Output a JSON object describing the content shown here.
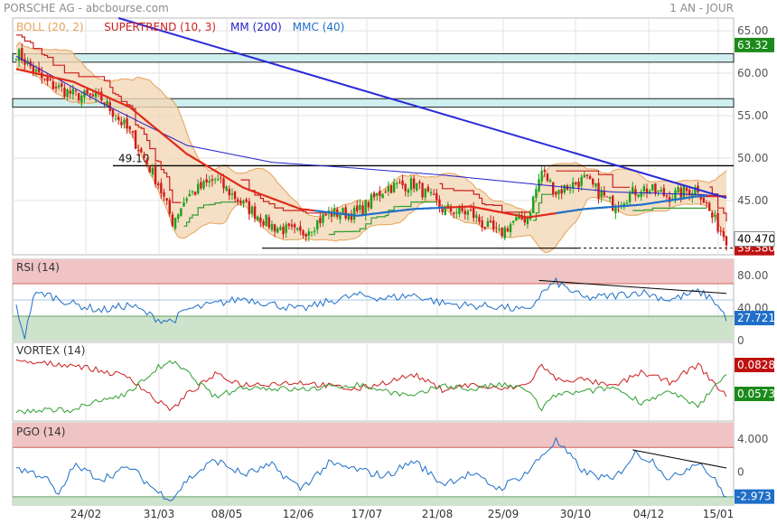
{
  "header": {
    "title": "PORSCHE AG - abcbourse.com",
    "period": "1 AN - JOUR"
  },
  "colors": {
    "price_up": "#19a319",
    "price_down": "#d01a1a",
    "boll": "#e6a35a",
    "boll_fill": "#f3d7b6",
    "supertrend_up": "#2f9e2f",
    "supertrend_down": "#cc2020",
    "mm200": "#2222cc",
    "mmc40": "#1f6fc8",
    "trendline": "#2a2ad8",
    "rsi": "#1f6fc8",
    "vortex_pos": "#2f9e2f",
    "vortex_neg": "#cc2020",
    "pgo": "#1f6fc8",
    "zone_high": "#f0c4c4",
    "zone_low": "#cfe3cc",
    "zone_band": "#cfeef0"
  },
  "chart_data": [
    {
      "type": "line",
      "title": "PORSCHE AG - abcbourse.com",
      "legend": [
        "BOLL (20, 2)",
        "SUPERTREND (10, 3)",
        "MM (200)",
        "MMC (40)"
      ],
      "x_ticks": [
        "24/02",
        "31/03",
        "08/05",
        "12/06",
        "17/07",
        "21/08",
        "25/09",
        "30/10",
        "04/12",
        "15/01"
      ],
      "y_ticks": [
        45,
        50,
        55,
        60,
        65
      ],
      "y_tick_labels": [
        "45.00",
        "50.00",
        "55.00",
        "60.00",
        "65.00"
      ],
      "ylim": [
        38.6,
        66.5
      ],
      "x_count": 250,
      "price_badges": [
        "63.32",
        "40.470",
        "39.380"
      ],
      "annotation": "49.10",
      "levels": {
        "resistance_top": 63.32,
        "support": 39.38,
        "line_49": 49.1,
        "last": 40.47
      },
      "zones": [
        [
          61.3,
          62.3
        ],
        [
          56.0,
          57.0
        ]
      ],
      "trendline": {
        "x": [
          36,
          250
        ],
        "y": [
          69.6,
          45.3
        ]
      },
      "close_anchors": {
        "x": [
          0,
          10,
          20,
          30,
          40,
          50,
          55,
          60,
          70,
          80,
          90,
          100,
          110,
          120,
          130,
          140,
          150,
          160,
          165,
          170,
          175,
          180,
          185,
          190,
          200,
          210,
          220,
          230,
          240,
          245,
          250
        ],
        "y": [
          62.5,
          59.0,
          57.5,
          57.0,
          53.0,
          47.0,
          42.5,
          45.5,
          47.5,
          44.5,
          42.0,
          41.0,
          43.5,
          43.5,
          46.5,
          47.0,
          44.0,
          43.5,
          42.0,
          41.0,
          42.5,
          43.0,
          48.5,
          46.0,
          47.5,
          44.5,
          46.5,
          45.5,
          46.5,
          43.0,
          40.5
        ]
      },
      "mmc40_anchors": {
        "x": [
          0,
          20,
          40,
          60,
          80,
          100,
          120,
          140,
          160,
          180,
          200,
          220,
          240,
          250
        ],
        "y": [
          60.5,
          59.0,
          56.0,
          50.5,
          46.5,
          44.0,
          43.2,
          44.0,
          44.3,
          43.0,
          44.0,
          44.5,
          45.5,
          45.5
        ]
      },
      "mm200_anchors": {
        "x": [
          0,
          30,
          60,
          90,
          120,
          150,
          180,
          210,
          240,
          250
        ],
        "y": [
          62.0,
          56.5,
          51.5,
          49.5,
          48.8,
          48.0,
          47.0,
          46.0,
          45.7,
          45.5
        ]
      }
    },
    {
      "type": "line",
      "title": "RSI (14)",
      "y_ticks": [
        0,
        40,
        80
      ],
      "y_tick_labels": [
        "0",
        "40.00",
        "80.00"
      ],
      "ylim": [
        0,
        100
      ],
      "zones": {
        "high": 70,
        "mid": 50,
        "low": 30
      },
      "last_label": "27.721",
      "anchors": {
        "x": [
          0,
          3,
          6,
          10,
          20,
          30,
          40,
          50,
          55,
          60,
          70,
          80,
          90,
          100,
          110,
          120,
          130,
          140,
          150,
          160,
          170,
          180,
          185,
          190,
          200,
          210,
          220,
          230,
          240,
          245,
          250
        ],
        "y": [
          42,
          3,
          55,
          58,
          45,
          37,
          44,
          26,
          24,
          38,
          45,
          52,
          45,
          38,
          48,
          56,
          52,
          56,
          46,
          43,
          42,
          36,
          58,
          72,
          52,
          55,
          60,
          50,
          60,
          52,
          28
        ]
      },
      "trendline": {
        "x": [
          184,
          250
        ],
        "y": [
          74,
          58
        ]
      }
    },
    {
      "type": "line",
      "title": "VORTEX (14)",
      "series_labels": [
        "0.0828",
        "0.0573"
      ],
      "last_values": [
        0.0828,
        0.0573
      ],
      "pos_anchors": {
        "x": [
          0,
          20,
          40,
          50,
          55,
          60,
          70,
          80,
          100,
          120,
          140,
          150,
          160,
          170,
          180,
          185,
          190,
          200,
          210,
          220,
          230,
          240,
          250
        ],
        "y": [
          1.0,
          0.95,
          0.7,
          0.2,
          0.05,
          0.35,
          0.75,
          0.55,
          0.6,
          0.45,
          0.75,
          0.45,
          0.55,
          0.45,
          0.55,
          0.95,
          0.65,
          0.65,
          0.5,
          0.8,
          0.6,
          0.95,
          0.3
        ]
      },
      "neg_anchors": {
        "x": [
          0,
          20,
          40,
          50,
          55,
          60,
          70,
          80,
          100,
          120,
          140,
          150,
          160,
          170,
          180,
          185,
          190,
          200,
          210,
          220,
          230,
          240,
          250
        ],
        "y": [
          0.0,
          0.05,
          0.4,
          0.9,
          1.0,
          0.8,
          0.3,
          0.5,
          0.45,
          0.55,
          0.3,
          0.55,
          0.45,
          0.55,
          0.45,
          0.05,
          0.35,
          0.4,
          0.5,
          0.2,
          0.4,
          0.1,
          0.8
        ]
      }
    },
    {
      "type": "line",
      "title": "PGO (14)",
      "y_ticks": [
        0,
        4
      ],
      "y_tick_labels": [
        "0",
        "4.000"
      ],
      "ylim": [
        -4,
        6
      ],
      "zones": {
        "high": 3,
        "low": -3
      },
      "last_label": "-2.973",
      "anchors": {
        "x": [
          0,
          10,
          15,
          20,
          30,
          40,
          50,
          55,
          60,
          70,
          80,
          90,
          100,
          110,
          120,
          130,
          140,
          150,
          160,
          170,
          180,
          185,
          190,
          200,
          210,
          218,
          225,
          230,
          240,
          245,
          250
        ],
        "y": [
          0.5,
          -0.5,
          -3.0,
          0.8,
          -0.8,
          0.6,
          -2.5,
          -3.2,
          -1.0,
          1.5,
          -0.3,
          0.8,
          -2.0,
          1.0,
          0.3,
          -0.5,
          1.4,
          -1.4,
          -0.2,
          -2.0,
          0.0,
          2.0,
          3.8,
          0.0,
          -1.0,
          2.3,
          1.2,
          -1.0,
          1.4,
          -0.6,
          -3.0
        ]
      },
      "trendline": {
        "x": [
          217,
          250
        ],
        "y": [
          2.7,
          0.5
        ]
      }
    }
  ]
}
